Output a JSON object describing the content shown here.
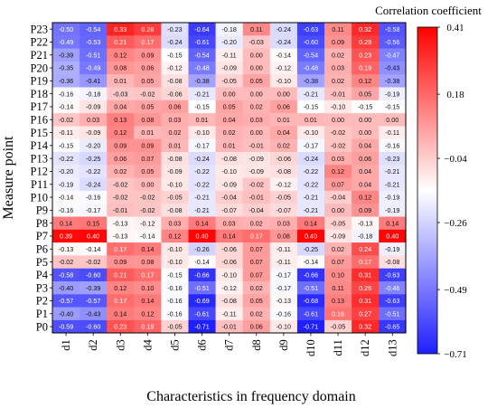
{
  "chart_data": {
    "type": "heatmap",
    "title": "",
    "xlabel": "Characteristics in frequency domain",
    "ylabel": "Measure point",
    "colorbar_label": "Correlation coefficient",
    "colorbar_ticks": [
      "0.41",
      "0.18",
      "−0.04",
      "−0.26",
      "−0.49",
      "−0.71"
    ],
    "colorbar_tick_values": [
      0.41,
      0.18,
      -0.04,
      -0.26,
      -0.49,
      -0.71
    ],
    "vmin": -0.71,
    "vmax": 0.41,
    "colormap": {
      "low": "#1f1fff",
      "mid": "#ffffff",
      "high": "#ff0000",
      "center": -0.15
    },
    "columns": [
      "d1",
      "d2",
      "d3",
      "d4",
      "d5",
      "d6",
      "d7",
      "d8",
      "d9",
      "d10",
      "d11",
      "d12",
      "d13"
    ],
    "rows": [
      "P23",
      "P22",
      "P21",
      "P20",
      "P19",
      "P18",
      "P17",
      "P16",
      "P15",
      "P14",
      "P13",
      "P12",
      "P11",
      "P10",
      "P9",
      "P8",
      "P7",
      "P6",
      "P5",
      "P4",
      "P3",
      "P2",
      "P1",
      "P0"
    ],
    "values": [
      [
        -0.5,
        -0.54,
        0.33,
        0.28,
        -0.23,
        -0.64,
        -0.18,
        0.11,
        -0.24,
        -0.63,
        0.11,
        0.32,
        -0.58
      ],
      [
        -0.49,
        -0.53,
        0.21,
        0.17,
        -0.24,
        -0.61,
        -0.2,
        -0.03,
        -0.24,
        -0.6,
        0.09,
        0.28,
        -0.56
      ],
      [
        -0.39,
        -0.51,
        0.12,
        0.09,
        -0.15,
        -0.54,
        -0.11,
        -0.0,
        -0.14,
        -0.54,
        0.02,
        0.23,
        -0.47
      ],
      [
        -0.35,
        -0.49,
        0.08,
        0.06,
        -0.12,
        -0.48,
        -0.09,
        0.0,
        -0.12,
        -0.48,
        0.03,
        0.19,
        -0.43
      ],
      [
        -0.36,
        -0.41,
        0.01,
        0.05,
        -0.08,
        -0.38,
        -0.05,
        0.05,
        -0.1,
        -0.38,
        0.02,
        0.12,
        -0.38
      ],
      [
        -0.16,
        -0.18,
        -0.03,
        -0.02,
        -0.06,
        -0.21,
        0.0,
        0.0,
        -0.0,
        -0.21,
        -0.01,
        0.05,
        -0.19
      ],
      [
        -0.14,
        -0.09,
        0.04,
        0.05,
        0.06,
        -0.15,
        0.05,
        0.02,
        0.06,
        -0.15,
        -0.1,
        -0.15,
        -0.15
      ],
      [
        -0.02,
        0.03,
        0.13,
        0.08,
        0.03,
        0.01,
        0.04,
        0.03,
        0.01,
        0.01,
        0.0,
        -0.0,
        -0.0
      ],
      [
        -0.11,
        -0.09,
        0.12,
        0.01,
        0.02,
        -0.1,
        0.02,
        0.0,
        0.04,
        -0.1,
        -0.02,
        -0.0,
        -0.11
      ],
      [
        -0.15,
        -0.2,
        0.09,
        0.09,
        0.01,
        -0.17,
        0.01,
        -0.01,
        0.02,
        -0.17,
        -0.02,
        0.04,
        -0.16
      ],
      [
        -0.22,
        -0.25,
        0.06,
        0.07,
        -0.08,
        -0.24,
        -0.08,
        -0.09,
        -0.06,
        -0.24,
        0.03,
        0.06,
        -0.23
      ],
      [
        -0.2,
        -0.22,
        0.02,
        0.05,
        -0.09,
        -0.22,
        -0.1,
        -0.09,
        -0.08,
        -0.22,
        0.12,
        0.04,
        -0.21
      ],
      [
        -0.19,
        -0.24,
        -0.02,
        0.0,
        -0.1,
        -0.22,
        -0.09,
        -0.02,
        -0.12,
        -0.22,
        0.07,
        0.04,
        -0.21
      ],
      [
        -0.14,
        -0.16,
        -0.02,
        -0.02,
        -0.05,
        -0.21,
        -0.04,
        -0.01,
        -0.05,
        -0.21,
        -0.04,
        0.12,
        -0.19
      ],
      [
        -0.16,
        -0.17,
        -0.01,
        -0.02,
        -0.08,
        -0.21,
        -0.07,
        -0.04,
        -0.07,
        -0.21,
        0.0,
        0.09,
        -0.19
      ],
      [
        0.14,
        0.15,
        -0.13,
        -0.12,
        0.03,
        0.14,
        0.03,
        0.02,
        0.03,
        0.14,
        -0.05,
        -0.13,
        0.14
      ],
      [
        0.39,
        0.4,
        -0.13,
        -0.14,
        0.12,
        0.4,
        0.14,
        0.17,
        0.08,
        0.4,
        -0.09,
        -0.18,
        0.4
      ],
      [
        -0.13,
        -0.14,
        0.17,
        0.14,
        -0.1,
        -0.26,
        -0.06,
        0.07,
        -0.11,
        -0.25,
        0.02,
        0.24,
        -0.19
      ],
      [
        -0.02,
        -0.02,
        0.09,
        0.08,
        -0.1,
        -0.14,
        -0.06,
        0.07,
        -0.11,
        -0.14,
        0.07,
        0.17,
        -0.08
      ],
      [
        -0.58,
        -0.6,
        0.21,
        0.17,
        -0.15,
        -0.66,
        -0.1,
        0.07,
        -0.17,
        -0.66,
        0.1,
        0.31,
        -0.63
      ],
      [
        -0.4,
        -0.39,
        0.12,
        0.1,
        -0.16,
        -0.51,
        -0.12,
        0.02,
        -0.17,
        -0.51,
        0.11,
        0.26,
        -0.46
      ],
      [
        -0.57,
        -0.57,
        0.17,
        0.14,
        -0.16,
        -0.69,
        -0.08,
        0.05,
        -0.13,
        -0.68,
        0.13,
        0.31,
        -0.63
      ],
      [
        -0.4,
        -0.43,
        0.14,
        0.12,
        -0.16,
        -0.61,
        -0.11,
        0.02,
        -0.16,
        -0.61,
        0.16,
        0.27,
        -0.51
      ],
      [
        -0.59,
        -0.6,
        0.23,
        0.19,
        -0.05,
        -0.71,
        -0.01,
        0.06,
        -0.1,
        -0.71,
        -0.05,
        0.32,
        -0.65
      ]
    ]
  }
}
